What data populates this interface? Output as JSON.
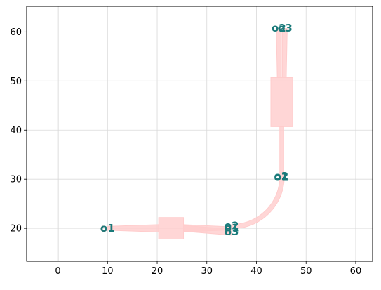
{
  "chart_data": {
    "type": "scatter",
    "title": "",
    "xlabel": "",
    "ylabel": "",
    "xlim": [
      -6.3,
      63.4
    ],
    "ylim": [
      13.3,
      65.2
    ],
    "grid": true,
    "x_ticks": [
      0,
      10,
      20,
      30,
      40,
      50,
      60
    ],
    "y_ticks": [
      20,
      30,
      40,
      50,
      60
    ],
    "colors": {
      "component_fill": "#ffcccc",
      "component_opacity": 0.8,
      "grid": "#d9d9d9",
      "zero_line": "#aaaaaa",
      "label_teal": "#1a7a7a",
      "label_red": "#d9534f"
    },
    "components": [
      {
        "name": "",
        "shape": "polygon",
        "points": [
          [
            10,
            19.6
          ],
          [
            20.3,
            19.25
          ],
          [
            20.3,
            20.75
          ],
          [
            10,
            20.4
          ]
        ]
      },
      {
        "name": "",
        "shape": "rect",
        "points": [
          [
            20.3,
            17.8
          ],
          [
            25.3,
            17.8
          ],
          [
            25.3,
            22.2
          ],
          [
            20.3,
            22.2
          ]
        ]
      },
      {
        "name": "",
        "shape": "polygon",
        "points": [
          [
            25.3,
            19.25
          ],
          [
            35,
            19.7
          ],
          [
            35,
            20.3
          ],
          [
            25.3,
            20.75
          ]
        ]
      },
      {
        "name": "",
        "shape": "polygon",
        "points": [
          [
            25.3,
            19.4
          ],
          [
            35,
            18.6
          ],
          [
            35,
            19.8
          ],
          [
            25.3,
            20.6
          ]
        ]
      },
      {
        "name": "",
        "shape": "bend",
        "center": [
          35,
          30.5
        ],
        "radius_inner": 9.7,
        "radius_outer": 10.6
      },
      {
        "name": "",
        "shape": "polygon",
        "points": [
          [
            44.7,
            30.5
          ],
          [
            44.7,
            40.7
          ],
          [
            45.5,
            40.7
          ],
          [
            45.5,
            30.5
          ]
        ]
      },
      {
        "name": "",
        "shape": "rect",
        "points": [
          [
            42.9,
            40.7
          ],
          [
            47.3,
            40.7
          ],
          [
            47.3,
            50.7
          ],
          [
            42.9,
            50.7
          ]
        ]
      },
      {
        "name": "",
        "shape": "polygon",
        "points": [
          [
            44.2,
            50.7
          ],
          [
            44.0,
            60.7
          ],
          [
            45.0,
            60.7
          ],
          [
            45.0,
            50.7
          ]
        ]
      },
      {
        "name": "",
        "shape": "polygon",
        "points": [
          [
            45.2,
            50.7
          ],
          [
            45.2,
            60.7
          ],
          [
            46.2,
            60.7
          ],
          [
            46.0,
            50.7
          ]
        ]
      }
    ],
    "ports": [
      {
        "label": "o1",
        "x": 10,
        "y": 20,
        "color": "#d9534f"
      },
      {
        "label": "o1",
        "x": 10,
        "y": 20,
        "color": "#1a7a7a"
      },
      {
        "label": "o2",
        "x": 35,
        "y": 20.5,
        "color": "#1a7a7a"
      },
      {
        "label": "o3",
        "x": 35,
        "y": 19.3,
        "color": "#1a7a7a"
      },
      {
        "label": "o1",
        "x": 35,
        "y": 20.1,
        "color": "#1a7a7a"
      },
      {
        "label": "o2",
        "x": 45.0,
        "y": 30.6,
        "color": "#1a7a7a"
      },
      {
        "label": "o1",
        "x": 45.0,
        "y": 30.4,
        "color": "#1a7a7a"
      },
      {
        "label": "o2",
        "x": 44.5,
        "y": 60.8,
        "color": "#1a7a7a"
      },
      {
        "label": "o3",
        "x": 45.8,
        "y": 60.8,
        "color": "#1a7a7a"
      }
    ]
  }
}
